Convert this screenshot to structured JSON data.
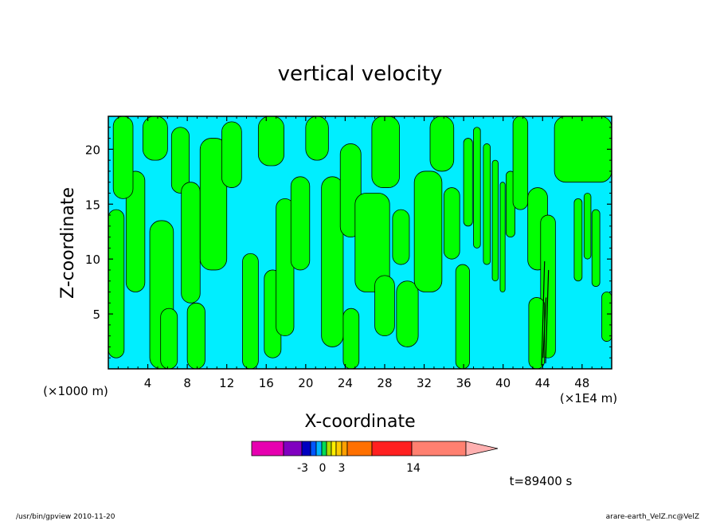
{
  "chart_data": {
    "type": "heatmap",
    "title": "vertical velocity",
    "xlabel": "X-coordinate",
    "ylabel": "Z-coordinate",
    "x_unit_left": "(×1000 m)",
    "x_unit_right": "(×1E4 m)",
    "xlim": [
      0,
      51
    ],
    "ylim": [
      0,
      23
    ],
    "x_ticks": [
      "4",
      "8",
      "12",
      "16",
      "20",
      "24",
      "28",
      "32",
      "36",
      "40",
      "44",
      "48"
    ],
    "x_tick_values": [
      4,
      8,
      12,
      16,
      20,
      24,
      28,
      32,
      36,
      40,
      44,
      48
    ],
    "y_ticks": [
      "5",
      "10",
      "15",
      "20"
    ],
    "y_tick_values": [
      5,
      10,
      15,
      20
    ],
    "field_colors": {
      "positive": "#00ff00",
      "negative": "#00eeff"
    },
    "colorbar": {
      "colors": [
        "#e600b0",
        "#8000c0",
        "#0000c0",
        "#0055ff",
        "#00b4ff",
        "#00dd55",
        "#aadd00",
        "#ffee00",
        "#ffcc00",
        "#ffa000",
        "#ff7000",
        "#ff2020",
        "#ff8070",
        "#ffb0b0"
      ],
      "labels": [
        "-3",
        "0",
        "3",
        "14"
      ],
      "label_values": [
        -3,
        0,
        3,
        14
      ]
    },
    "time_label": "t=89400 s"
  },
  "footer": {
    "left": "/usr/bin/gpview   2010-11-20",
    "right": "arare-earth_VelZ.nc@VelZ"
  }
}
